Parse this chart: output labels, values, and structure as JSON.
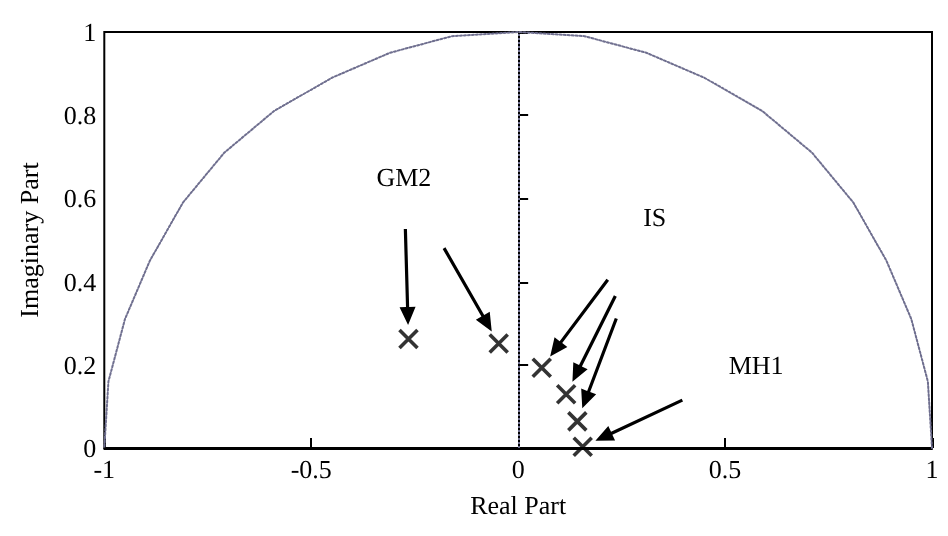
{
  "chart_data": {
    "type": "scatter",
    "xlabel": "Real Part",
    "ylabel": "Imaginary Part",
    "xlim": [
      -1,
      1
    ],
    "ylim": [
      0,
      1
    ],
    "xticks": [
      -1,
      -0.5,
      0,
      0.5,
      1
    ],
    "yticks": [
      0,
      0.2,
      0.4,
      0.6,
      0.8,
      1
    ],
    "grid": false,
    "series": [
      {
        "type": "line",
        "color": "#6f6f8f",
        "line_style": "dotted",
        "x": [
          1,
          0.99,
          0.95,
          0.89,
          0.81,
          0.71,
          0.59,
          0.45,
          0.31,
          0.16,
          0,
          -0.16,
          -0.31,
          -0.45,
          -0.59,
          -0.71,
          -0.81,
          -0.89,
          -0.95,
          -0.99,
          -1
        ],
        "values": [
          0,
          0.16,
          0.31,
          0.45,
          0.59,
          0.71,
          0.81,
          0.89,
          0.95,
          0.99,
          1,
          0.99,
          0.95,
          0.89,
          0.81,
          0.71,
          0.59,
          0.45,
          0.31,
          0.16,
          0
        ]
      },
      {
        "color": "#000000",
        "marker": "cross",
        "x": [
          -0.265,
          -0.047,
          0.057,
          0.116,
          0.143,
          0.156
        ],
        "values": [
          0.262,
          0.251,
          0.193,
          0.129,
          0.064,
          0.003
        ]
      }
    ],
    "ref_lines": [
      {
        "axis": "x",
        "value": 0,
        "color": "#6f6f8f",
        "line_style": "dotted"
      }
    ],
    "annotations": [
      {
        "text": "GM2",
        "x": -0.276,
        "y": 0.649
      },
      {
        "text": "IS",
        "x": 0.33,
        "y": 0.555
      },
      {
        "text": "MH1",
        "x": 0.575,
        "y": 0.198
      }
    ]
  }
}
